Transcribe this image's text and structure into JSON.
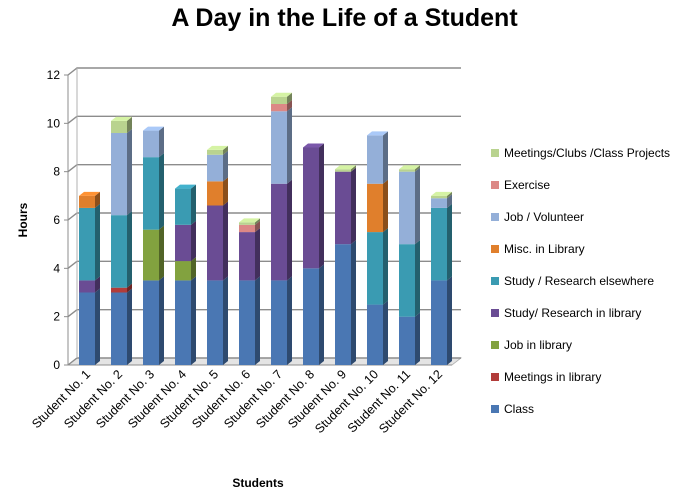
{
  "chart_data": {
    "type": "bar",
    "stacked": true,
    "title": "A Day in the Life of a Student",
    "xlabel": "Students",
    "ylabel": "Hours",
    "ylim": [
      0,
      12
    ],
    "yticks": [
      0,
      2,
      4,
      6,
      8,
      10,
      12
    ],
    "grid": true,
    "legend_position": "right",
    "categories": [
      "Student No. 1",
      "Student No. 2",
      "Student No. 3",
      "Student No. 4",
      "Student No. 5",
      "Student No. 6",
      "Student No. 7",
      "Student No. 8",
      "Student No. 9",
      "Student No. 10",
      "Student No. 11",
      "Student No. 12"
    ],
    "series": [
      {
        "name": "Class",
        "color": "#4a77b3",
        "values": [
          3,
          3,
          3.5,
          3.5,
          3.5,
          3.5,
          3.5,
          4,
          5,
          2.5,
          2,
          3.5
        ]
      },
      {
        "name": "Meetings in library",
        "color": "#b23c3a",
        "values": [
          0,
          0.2,
          0,
          0,
          0,
          0,
          0,
          0,
          0,
          0,
          0,
          0
        ]
      },
      {
        "name": "Job in library",
        "color": "#82a23f",
        "values": [
          0,
          0,
          2.1,
          0.8,
          0,
          0,
          0,
          0,
          0,
          0,
          0,
          0
        ]
      },
      {
        "name": "Study/ Research in library",
        "color": "#6a4c94",
        "values": [
          0.5,
          0,
          0,
          1.5,
          3.1,
          2,
          4,
          5,
          3,
          0,
          0,
          0
        ]
      },
      {
        "name": "Study / Research elsewhere",
        "color": "#3a9bb2",
        "values": [
          3,
          3,
          3,
          1.5,
          0,
          0,
          0,
          0,
          0,
          3,
          3,
          3
        ]
      },
      {
        "name": "Misc. in Library",
        "color": "#e07f2c",
        "values": [
          0.5,
          0,
          0,
          0,
          1,
          0,
          0,
          0,
          0,
          2,
          0,
          0
        ]
      },
      {
        "name": "Job / Volunteer",
        "color": "#94afd8",
        "values": [
          0,
          3.4,
          1.1,
          0,
          1.1,
          0,
          3,
          0,
          0,
          2,
          3,
          0.4
        ]
      },
      {
        "name": "Exercise",
        "color": "#dc8886",
        "values": [
          0,
          0,
          0,
          0,
          0,
          0.3,
          0.3,
          0,
          0,
          0,
          0,
          0
        ]
      },
      {
        "name": "Meetings/Clubs /Class Projects",
        "color": "#b9d38f",
        "values": [
          0,
          0.5,
          0,
          0,
          0.2,
          0.1,
          0.3,
          0,
          0.1,
          0,
          0.1,
          0.1
        ]
      }
    ]
  }
}
